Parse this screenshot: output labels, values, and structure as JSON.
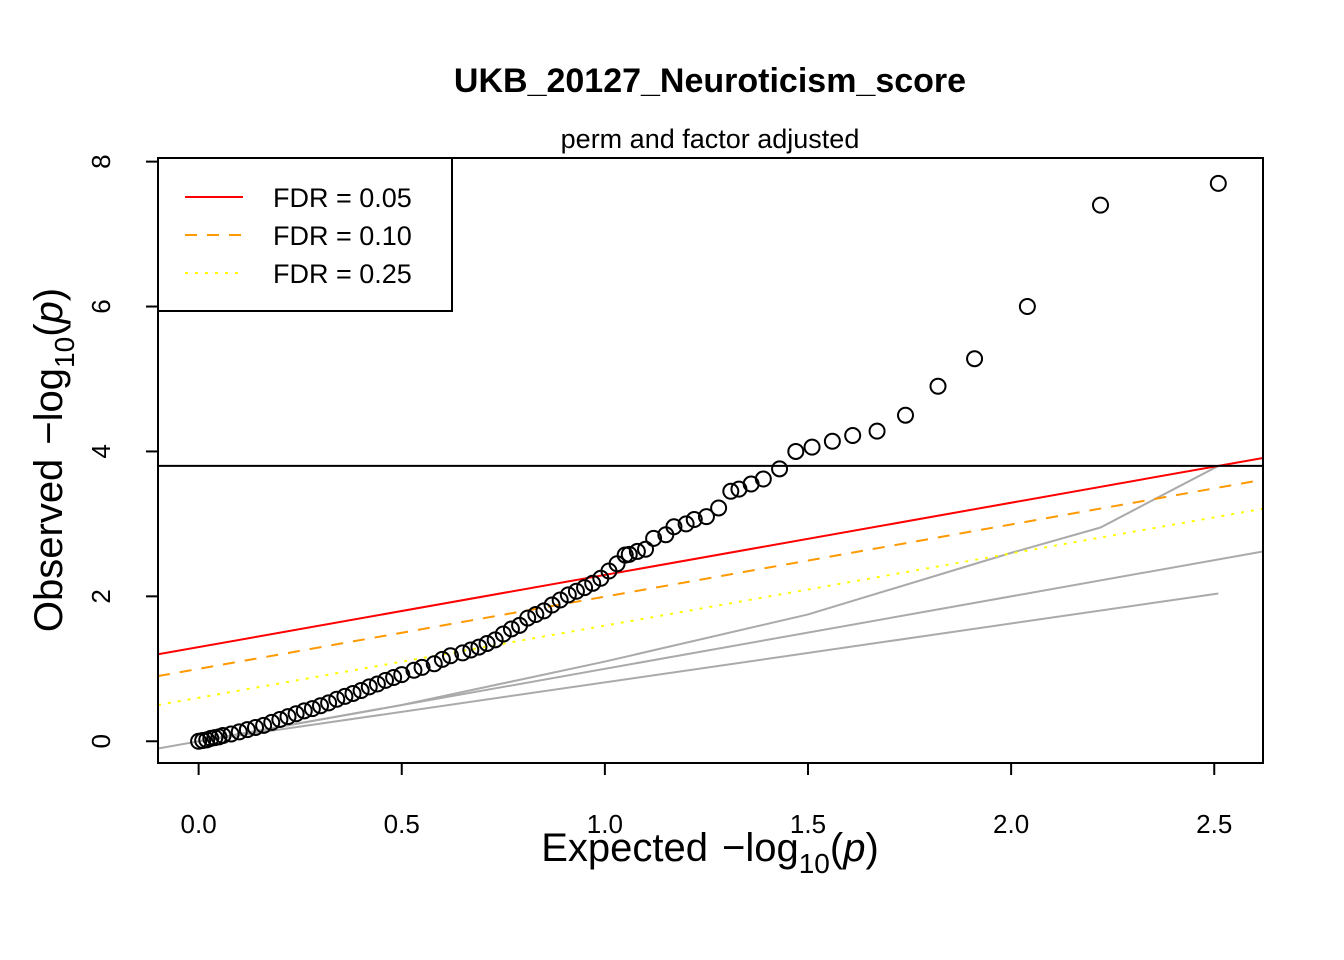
{
  "chart_data": {
    "type": "scatter",
    "title": "UKB_20127_Neuroticism_score",
    "subtitle": "perm and factor adjusted",
    "xlabel": "Expected",
    "ylabel": "Observed",
    "axis_label_math": {
      "prefix": "−log",
      "subscript": "10",
      "open": "(",
      "var": "p",
      "close": ")"
    },
    "xlim": [
      -0.1,
      2.62
    ],
    "ylim": [
      -0.3,
      8.05
    ],
    "x_ticks": [
      0.0,
      0.5,
      1.0,
      1.5,
      2.0,
      2.5
    ],
    "x_tick_labels": [
      "0.0",
      "0.5",
      "1.0",
      "1.5",
      "2.0",
      "2.5"
    ],
    "y_ticks": [
      0,
      2,
      4,
      6,
      8
    ],
    "y_tick_labels": [
      "0",
      "2",
      "4",
      "6",
      "8"
    ],
    "legend": {
      "position": "top-left",
      "entries": [
        {
          "label": "FDR = 0.05",
          "color": "#ff0000",
          "style": "solid"
        },
        {
          "label": "FDR = 0.10",
          "color": "#ff9900",
          "style": "dashed"
        },
        {
          "label": "FDR = 0.25",
          "color": "#ffff00",
          "style": "dotted"
        }
      ]
    },
    "threshold_line": {
      "y": 3.8,
      "color": "#000000"
    },
    "fdr_lines": [
      {
        "label": "FDR = 0.05",
        "color": "#ff0000",
        "style": "solid",
        "x": [
          -0.1,
          2.62
        ],
        "y": [
          1.2,
          3.91
        ]
      },
      {
        "label": "FDR = 0.10",
        "color": "#ff9900",
        "style": "dashed",
        "x": [
          -0.1,
          2.62
        ],
        "y": [
          0.9,
          3.61
        ]
      },
      {
        "label": "FDR = 0.25",
        "color": "#ffff00",
        "style": "dotted",
        "x": [
          -0.1,
          2.62
        ],
        "y": [
          0.5,
          3.21
        ]
      }
    ],
    "reference_lines": [
      {
        "color": "#aaaaaa",
        "x": [
          -0.1,
          2.62
        ],
        "y": [
          -0.1,
          2.62
        ]
      },
      {
        "color": "#aaaaaa",
        "x": [
          0.0,
          0.5,
          1.0,
          1.5,
          2.0,
          2.22,
          2.51
        ],
        "y": [
          0.0,
          0.5,
          1.1,
          1.75,
          2.6,
          2.95,
          3.8
        ]
      },
      {
        "color": "#aaaaaa",
        "x": [
          0.0,
          2.51
        ],
        "y": [
          0.0,
          2.04
        ]
      }
    ],
    "points": {
      "x": [
        2.51,
        2.22,
        2.04,
        1.91,
        1.82,
        1.74,
        1.67,
        1.61,
        1.56,
        1.51,
        1.47,
        1.43,
        1.39,
        1.36,
        1.33,
        1.31,
        1.28,
        1.25,
        1.22,
        1.2,
        1.17,
        1.15,
        1.12,
        1.1,
        1.08,
        1.06,
        1.05,
        1.03,
        1.01,
        0.99,
        0.97,
        0.95,
        0.93,
        0.91,
        0.89,
        0.87,
        0.85,
        0.83,
        0.81,
        0.79,
        0.77,
        0.75,
        0.73,
        0.71,
        0.69,
        0.67,
        0.65,
        0.62,
        0.6,
        0.58,
        0.55,
        0.53,
        0.5,
        0.48,
        0.46,
        0.44,
        0.42,
        0.4,
        0.38,
        0.36,
        0.34,
        0.32,
        0.3,
        0.28,
        0.26,
        0.24,
        0.22,
        0.2,
        0.18,
        0.16,
        0.14,
        0.12,
        0.1,
        0.08,
        0.06,
        0.05,
        0.04,
        0.03,
        0.02,
        0.01,
        0.0
      ],
      "y": [
        7.7,
        7.4,
        6.0,
        5.28,
        4.9,
        4.5,
        4.28,
        4.22,
        4.14,
        4.06,
        4.0,
        3.76,
        3.62,
        3.55,
        3.48,
        3.45,
        3.22,
        3.1,
        3.06,
        3.0,
        2.96,
        2.85,
        2.8,
        2.65,
        2.62,
        2.58,
        2.57,
        2.45,
        2.35,
        2.25,
        2.18,
        2.12,
        2.07,
        2.02,
        1.95,
        1.88,
        1.8,
        1.75,
        1.7,
        1.6,
        1.55,
        1.48,
        1.4,
        1.35,
        1.3,
        1.26,
        1.22,
        1.18,
        1.13,
        1.07,
        1.02,
        0.98,
        0.92,
        0.88,
        0.84,
        0.79,
        0.75,
        0.7,
        0.66,
        0.62,
        0.58,
        0.53,
        0.49,
        0.45,
        0.42,
        0.38,
        0.34,
        0.3,
        0.26,
        0.22,
        0.19,
        0.16,
        0.13,
        0.1,
        0.08,
        0.06,
        0.05,
        0.04,
        0.02,
        0.01,
        0.0
      ]
    }
  }
}
